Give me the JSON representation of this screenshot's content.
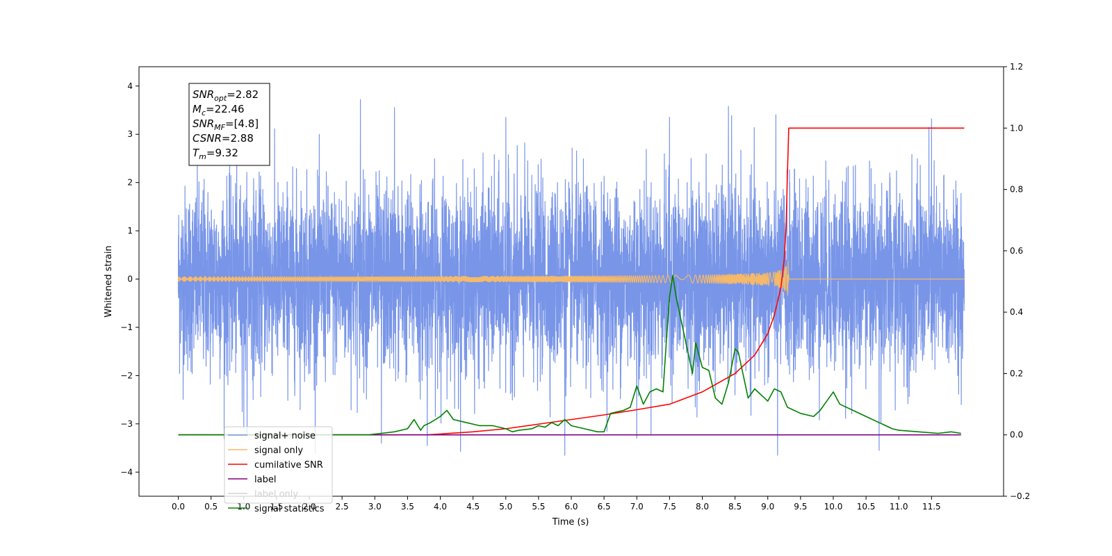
{
  "chart_data": {
    "type": "line",
    "xlabel": "Time (s)",
    "ylabel": "Whitened strain",
    "xlim": [
      -0.6,
      12.6
    ],
    "ylim": [
      -4.5,
      4.4
    ],
    "y2lim": [
      -0.2,
      1.2
    ],
    "x_ticks": [
      "0.0",
      "0.5",
      "1.0",
      "1.5",
      "2.0",
      "2.5",
      "3.0",
      "3.5",
      "4.0",
      "4.5",
      "5.0",
      "5.5",
      "6.0",
      "6.5",
      "7.0",
      "7.5",
      "8.0",
      "8.5",
      "9.0",
      "9.5",
      "10.0",
      "10.5",
      "11.0",
      "11.5"
    ],
    "y_ticks": [
      "4",
      "3",
      "2",
      "1",
      "0",
      "−1",
      "−2",
      "−3",
      "−4"
    ],
    "y2_ticks": [
      "1.2",
      "1.0",
      "0.8",
      "0.6",
      "0.4",
      "0.2",
      "0.0",
      "−0.2"
    ],
    "grid": false,
    "legend_position": "lower-left",
    "annotation": {
      "lines": [
        {
          "sym": "SNR",
          "sub": "opt",
          "val": "=2.82"
        },
        {
          "sym": "M",
          "sub": "c",
          "val": "=22.46"
        },
        {
          "sym": "SNR",
          "sub": "MF",
          "val": "=[4.8]"
        },
        {
          "sym": "CSNR",
          "sub": "",
          "val": "=2.88"
        },
        {
          "sym": "T",
          "sub": "m",
          "val": "=9.32"
        }
      ]
    },
    "series": [
      {
        "name": "signal+ noise",
        "axis": "left",
        "color": "#7895e8",
        "style": "noise",
        "x_range": [
          0.0,
          12.0
        ],
        "amplitude_range": [
          -3.6,
          3.6
        ],
        "spikes": [
          [
            2.78,
            3.72
          ],
          [
            3.3,
            3.55
          ],
          [
            5.0,
            3.35
          ],
          [
            7.5,
            3.35
          ],
          [
            8.4,
            3.58
          ],
          [
            11.5,
            3.32
          ],
          [
            1.0,
            -3.1
          ],
          [
            3.1,
            -3.4
          ],
          [
            3.8,
            -3.45
          ],
          [
            5.9,
            -3.65
          ],
          [
            7.0,
            -3.3
          ],
          [
            9.15,
            -3.65
          ],
          [
            10.7,
            -3.55
          ]
        ]
      },
      {
        "name": "signal only",
        "axis": "left",
        "color": "#f5b96a",
        "style": "chirp",
        "x_range": [
          0.0,
          12.0
        ],
        "merger_time": 9.32,
        "peak_amplitude": 0.55
      },
      {
        "name": "cumilative SNR",
        "axis": "right",
        "color": "#ff0000",
        "x": [
          0.0,
          3.0,
          3.8,
          4.5,
          5.0,
          5.5,
          6.0,
          6.5,
          7.0,
          7.5,
          8.0,
          8.5,
          8.8,
          9.0,
          9.1,
          9.2,
          9.25,
          9.28,
          9.3,
          9.32,
          12.0
        ],
        "values": [
          0.0,
          0.0,
          0.0,
          0.01,
          0.02,
          0.035,
          0.05,
          0.065,
          0.082,
          0.1,
          0.14,
          0.2,
          0.26,
          0.33,
          0.39,
          0.48,
          0.57,
          0.68,
          0.85,
          1.0,
          1.0
        ]
      },
      {
        "name": "label",
        "axis": "right",
        "color": "#800080",
        "x": [
          0.0,
          11.95
        ],
        "values": [
          0.0,
          0.0
        ]
      },
      {
        "name": "label only",
        "axis": "right",
        "color": "#d3d3d3",
        "hidden_in_plot": true,
        "x": [],
        "values": []
      },
      {
        "name": "signal statistics",
        "axis": "right",
        "color": "#008000",
        "x": [
          0.0,
          2.9,
          3.1,
          3.3,
          3.5,
          3.6,
          3.7,
          3.75,
          3.85,
          4.0,
          4.1,
          4.2,
          4.4,
          4.6,
          4.8,
          5.0,
          5.1,
          5.2,
          5.4,
          5.5,
          5.6,
          5.7,
          5.8,
          5.9,
          6.0,
          6.2,
          6.4,
          6.5,
          6.6,
          6.8,
          6.9,
          7.0,
          7.1,
          7.2,
          7.3,
          7.4,
          7.45,
          7.5,
          7.55,
          7.6,
          7.7,
          7.8,
          7.85,
          7.9,
          8.0,
          8.1,
          8.2,
          8.3,
          8.4,
          8.5,
          8.55,
          8.6,
          8.7,
          8.8,
          9.0,
          9.1,
          9.2,
          9.3,
          9.5,
          9.7,
          9.8,
          9.9,
          10.0,
          10.1,
          10.3,
          10.5,
          10.7,
          10.9,
          11.0,
          11.3,
          11.6,
          11.8,
          11.95
        ],
        "values": [
          0.0,
          0.0,
          0.005,
          0.01,
          0.02,
          0.05,
          0.015,
          0.03,
          0.04,
          0.06,
          0.08,
          0.05,
          0.04,
          0.03,
          0.03,
          0.02,
          0.01,
          0.015,
          0.02,
          0.03,
          0.025,
          0.04,
          0.03,
          0.05,
          0.03,
          0.02,
          0.01,
          0.01,
          0.07,
          0.08,
          0.09,
          0.16,
          0.1,
          0.14,
          0.15,
          0.14,
          0.3,
          0.45,
          0.52,
          0.45,
          0.35,
          0.25,
          0.2,
          0.3,
          0.22,
          0.21,
          0.12,
          0.1,
          0.17,
          0.28,
          0.27,
          0.22,
          0.12,
          0.15,
          0.11,
          0.15,
          0.14,
          0.09,
          0.07,
          0.06,
          0.08,
          0.11,
          0.14,
          0.1,
          0.08,
          0.06,
          0.04,
          0.02,
          0.015,
          0.01,
          0.005,
          0.01,
          0.005
        ]
      }
    ]
  }
}
